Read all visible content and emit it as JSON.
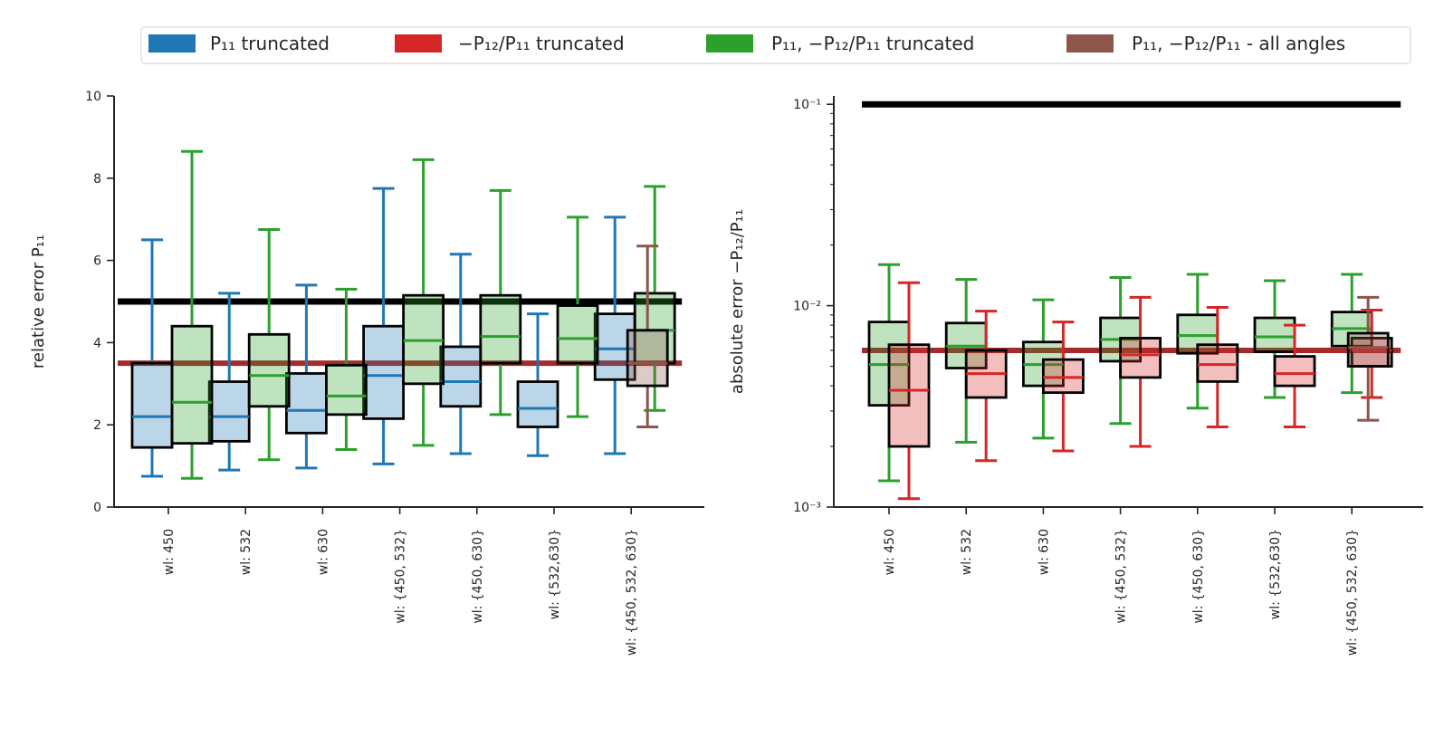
{
  "legend": {
    "entries": [
      {
        "label": "P₁₁ truncated",
        "color": "#1f77b4"
      },
      {
        "label": "−P₁₂/P₁₁ truncated",
        "color": "#d62728"
      },
      {
        "label": "P₁₁, −P₁₂/P₁₁ truncated",
        "color": "#2ca02c"
      },
      {
        "label": "P₁₁, −P₁₂/P₁₁ - all angles",
        "color": "#8c564b"
      }
    ]
  },
  "chart_data": [
    {
      "type": "box",
      "title": "",
      "xlabel": "",
      "ylabel": "relative error P₁₁",
      "yscale": "linear",
      "ylim": [
        0,
        10
      ],
      "yticks": [
        "0",
        "2",
        "4",
        "6",
        "8",
        "10"
      ],
      "ytick_values": [
        0,
        2,
        4,
        6,
        8,
        10
      ],
      "categories": [
        "wl: 450",
        "wl: 532",
        "wl: 630",
        "wl: {450, 532}",
        "wl: {450, 630}",
        "wl: {532,630}",
        "wl: {450, 532, 630}"
      ],
      "reference_lines": [
        {
          "name": "threshold",
          "value": 5.0,
          "color": "#000000"
        },
        {
          "name": "reference",
          "value": 3.5,
          "color": "#a52a2a"
        }
      ],
      "series": [
        {
          "name": "P₁₁ truncated",
          "color": "#1f77b4",
          "boxes": [
            {
              "whislo": 0.75,
              "q1": 1.45,
              "median": 2.2,
              "q3": 3.5,
              "whishi": 6.5
            },
            {
              "whislo": 0.9,
              "q1": 1.6,
              "median": 2.2,
              "q3": 3.05,
              "whishi": 5.2
            },
            {
              "whislo": 0.95,
              "q1": 1.8,
              "median": 2.35,
              "q3": 3.25,
              "whishi": 5.4
            },
            {
              "whislo": 1.05,
              "q1": 2.15,
              "median": 3.2,
              "q3": 4.4,
              "whishi": 7.75
            },
            {
              "whislo": 1.3,
              "q1": 2.45,
              "median": 3.05,
              "q3": 3.9,
              "whishi": 6.15
            },
            {
              "whislo": 1.25,
              "q1": 1.95,
              "median": 2.4,
              "q3": 3.05,
              "whishi": 4.7
            },
            {
              "whislo": 1.3,
              "q1": 3.1,
              "median": 3.85,
              "q3": 4.7,
              "whishi": 7.05
            }
          ]
        },
        {
          "name": "P₁₁, −P₁₂/P₁₁ truncated",
          "color": "#2ca02c",
          "boxes": [
            {
              "whislo": 0.7,
              "q1": 1.55,
              "median": 2.55,
              "q3": 4.4,
              "whishi": 8.65
            },
            {
              "whislo": 1.15,
              "q1": 2.45,
              "median": 3.2,
              "q3": 4.2,
              "whishi": 6.75
            },
            {
              "whislo": 1.4,
              "q1": 2.25,
              "median": 2.7,
              "q3": 3.45,
              "whishi": 5.3
            },
            {
              "whislo": 1.5,
              "q1": 3.0,
              "median": 4.05,
              "q3": 5.15,
              "whishi": 8.45
            },
            {
              "whislo": 2.25,
              "q1": 3.5,
              "median": 4.15,
              "q3": 5.15,
              "whishi": 7.7
            },
            {
              "whislo": 2.2,
              "q1": 3.5,
              "median": 4.1,
              "q3": 4.9,
              "whishi": 7.05
            },
            {
              "whislo": 2.35,
              "q1": 3.5,
              "median": 4.3,
              "q3": 5.2,
              "whishi": 7.8
            }
          ]
        },
        {
          "name": "P₁₁, −P₁₂/P₁₁ - all angles",
          "color": "#8c564b",
          "boxes": [
            null,
            null,
            null,
            null,
            null,
            null,
            {
              "whislo": 1.95,
              "q1": 2.95,
              "median": 3.5,
              "q3": 4.3,
              "whishi": 6.35
            }
          ]
        }
      ]
    },
    {
      "type": "box",
      "title": "",
      "xlabel": "",
      "ylabel": "absolute error −P₁₂/P₁₁",
      "yscale": "log",
      "ylim": [
        0.001,
        0.11
      ],
      "yticks": [
        "10⁻³",
        "10⁻²",
        "10⁻¹"
      ],
      "ytick_values": [
        0.001,
        0.01,
        0.1
      ],
      "categories": [
        "wl: 450",
        "wl: 532",
        "wl: 630",
        "wl: {450, 532}",
        "wl: {450, 630}",
        "wl: {532,630}",
        "wl: {450, 532, 630}"
      ],
      "reference_lines": [
        {
          "name": "threshold",
          "value": 0.1,
          "color": "#000000"
        },
        {
          "name": "reference",
          "value": 0.006,
          "color": "#a52a2a"
        }
      ],
      "series": [
        {
          "name": "P₁₁, −P₁₂/P₁₁ truncated",
          "color": "#2ca02c",
          "boxes": [
            {
              "whislo": 0.00135,
              "q1": 0.0032,
              "median": 0.0051,
              "q3": 0.0083,
              "whishi": 0.016
            },
            {
              "whislo": 0.0021,
              "q1": 0.0049,
              "median": 0.0063,
              "q3": 0.0082,
              "whishi": 0.0135
            },
            {
              "whislo": 0.0022,
              "q1": 0.004,
              "median": 0.0051,
              "q3": 0.0066,
              "whishi": 0.0107
            },
            {
              "whislo": 0.0026,
              "q1": 0.0053,
              "median": 0.0068,
              "q3": 0.0087,
              "whishi": 0.0138
            },
            {
              "whislo": 0.0031,
              "q1": 0.0058,
              "median": 0.0071,
              "q3": 0.009,
              "whishi": 0.0143
            },
            {
              "whislo": 0.0035,
              "q1": 0.0059,
              "median": 0.007,
              "q3": 0.0087,
              "whishi": 0.0133
            },
            {
              "whislo": 0.0037,
              "q1": 0.0063,
              "median": 0.0077,
              "q3": 0.0093,
              "whishi": 0.0143
            }
          ]
        },
        {
          "name": "−P₁₂/P₁₁ truncated",
          "color": "#d62728",
          "boxes": [
            {
              "whislo": 0.0011,
              "q1": 0.002,
              "median": 0.0038,
              "q3": 0.0064,
              "whishi": 0.013
            },
            {
              "whislo": 0.0017,
              "q1": 0.0035,
              "median": 0.0046,
              "q3": 0.006,
              "whishi": 0.0094
            },
            {
              "whislo": 0.0019,
              "q1": 0.0037,
              "median": 0.0044,
              "q3": 0.0054,
              "whishi": 0.0083
            },
            {
              "whislo": 0.002,
              "q1": 0.0044,
              "median": 0.0057,
              "q3": 0.0069,
              "whishi": 0.011
            },
            {
              "whislo": 0.0025,
              "q1": 0.0042,
              "median": 0.0051,
              "q3": 0.0064,
              "whishi": 0.0098
            },
            {
              "whislo": 0.0025,
              "q1": 0.004,
              "median": 0.0046,
              "q3": 0.0056,
              "whishi": 0.008
            },
            {
              "whislo": 0.0035,
              "q1": 0.005,
              "median": 0.006,
              "q3": 0.0069,
              "whishi": 0.0095
            }
          ]
        },
        {
          "name": "P₁₁, −P₁₂/P₁₁ - all angles",
          "color": "#8c564b",
          "boxes": [
            null,
            null,
            null,
            null,
            null,
            null,
            {
              "whislo": 0.0027,
              "q1": 0.005,
              "median": 0.0062,
              "q3": 0.0073,
              "whishi": 0.011
            }
          ]
        }
      ]
    }
  ]
}
